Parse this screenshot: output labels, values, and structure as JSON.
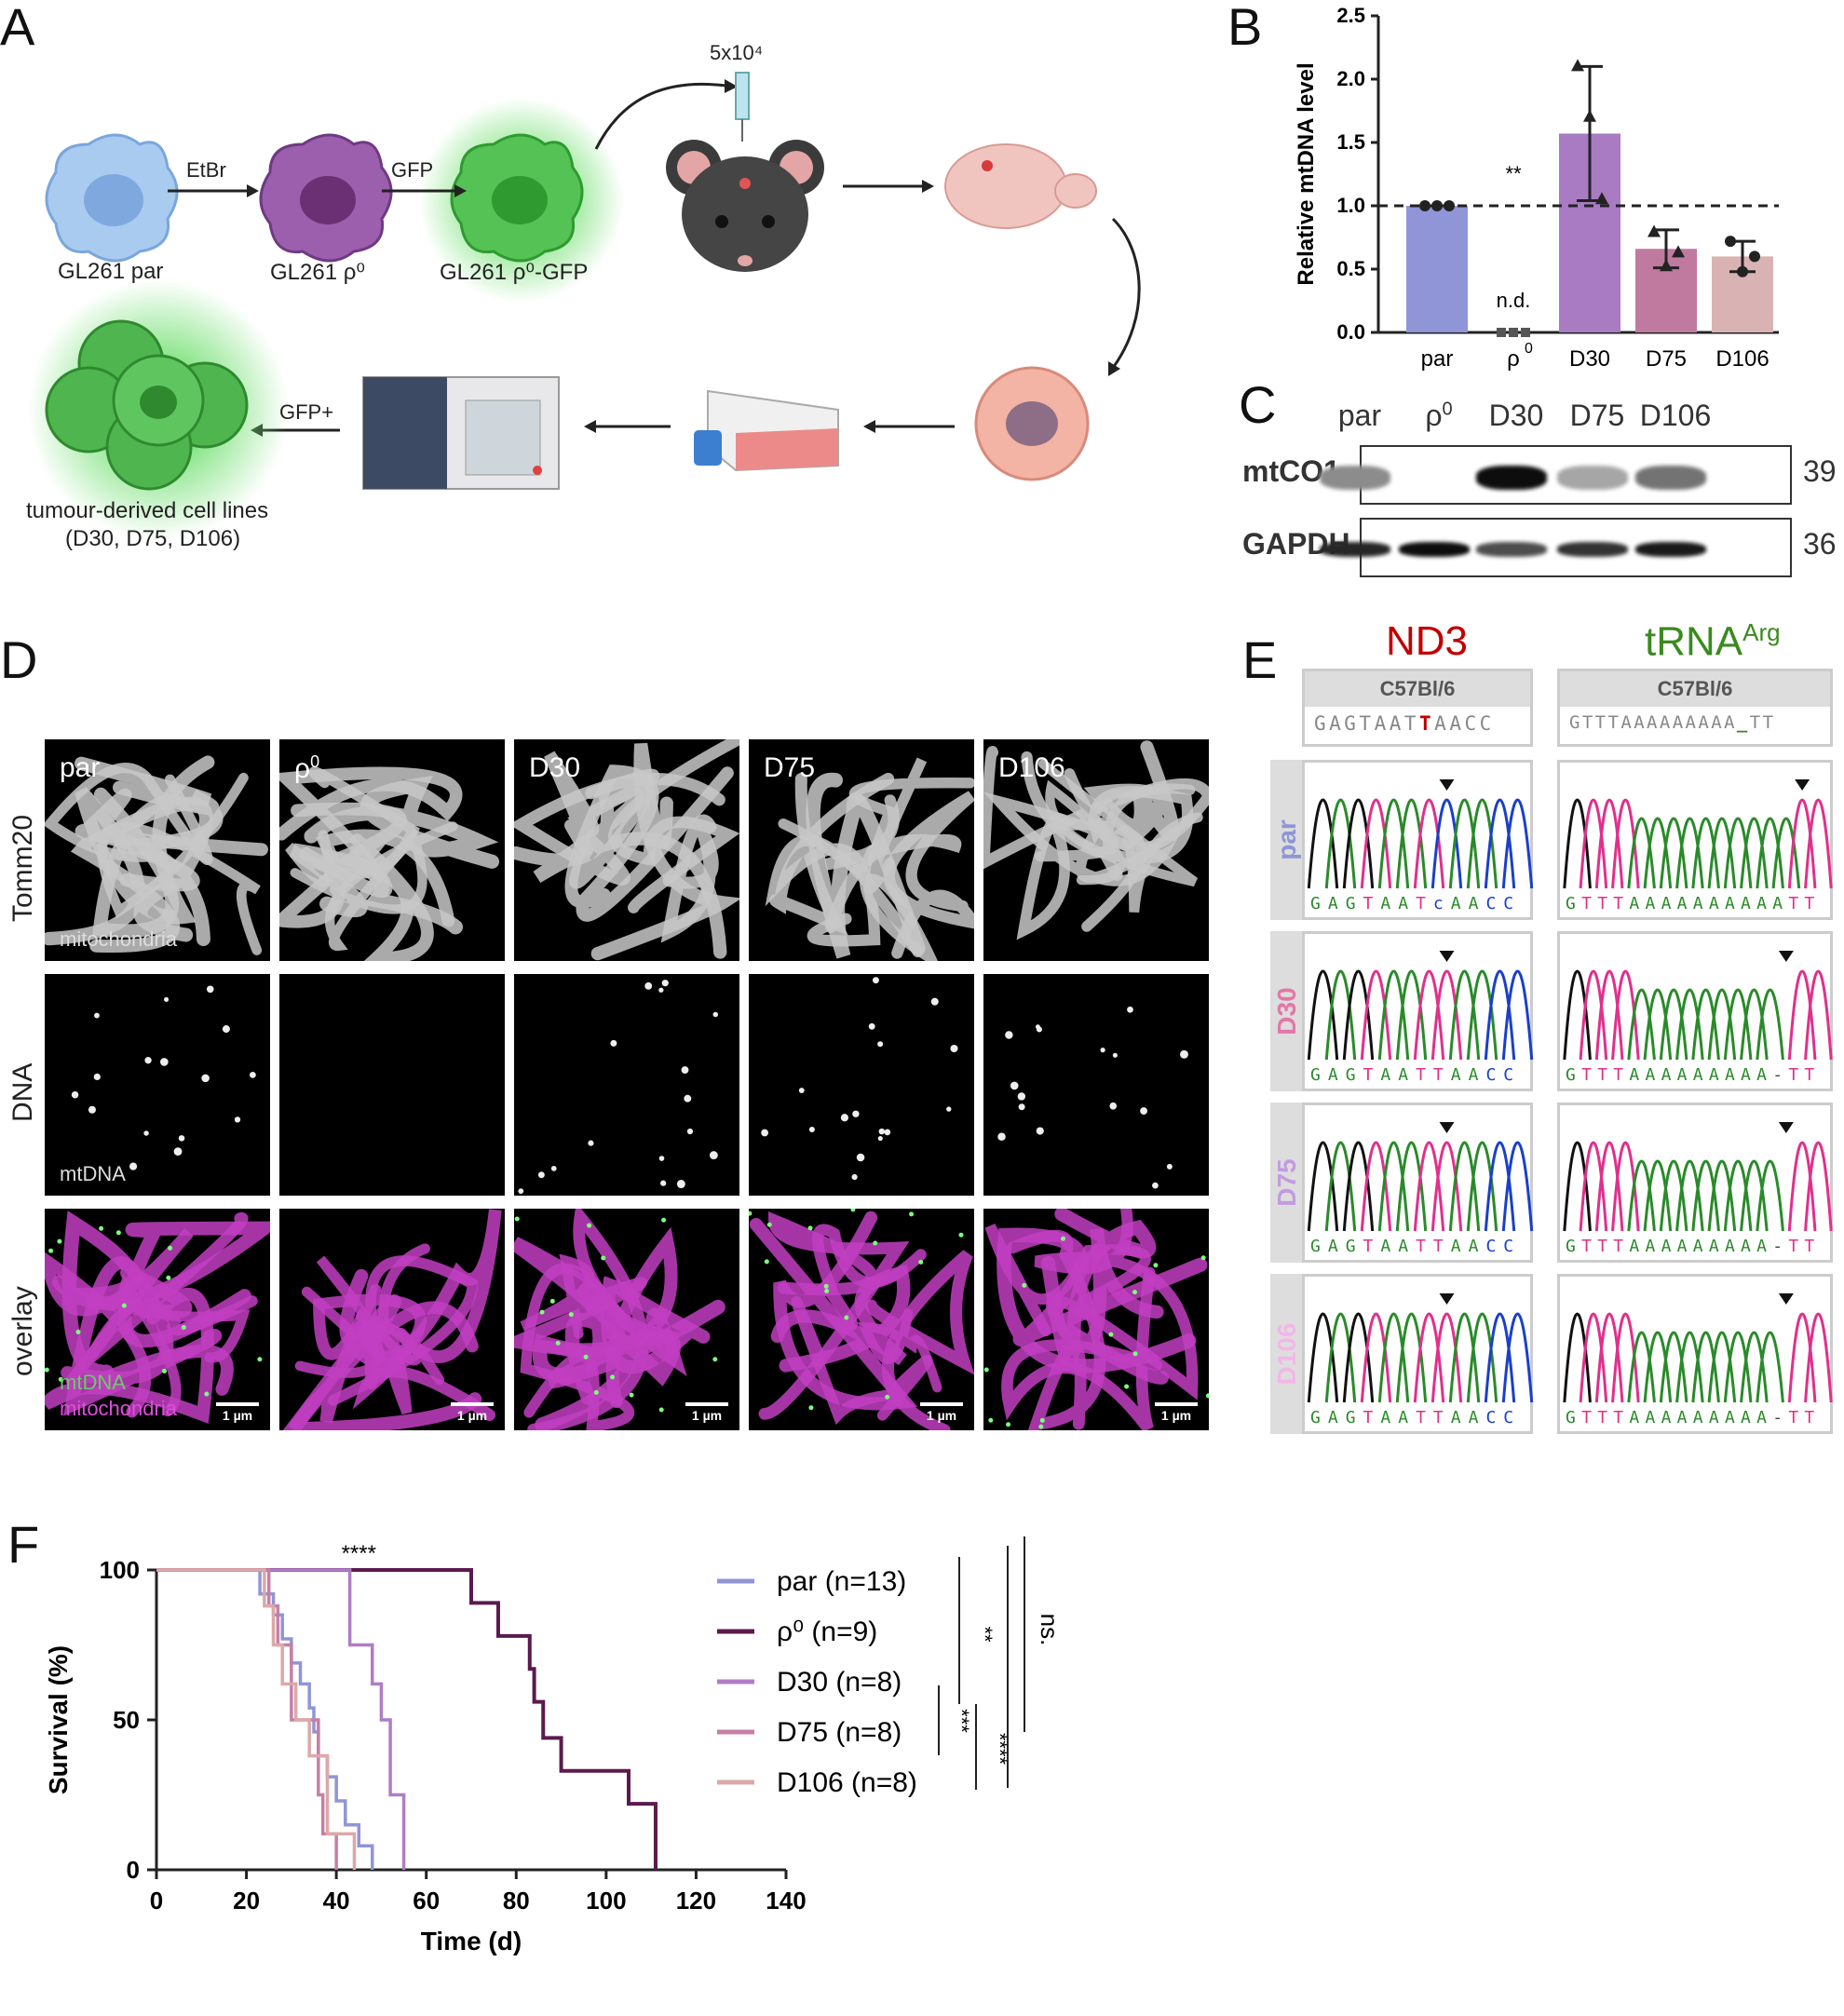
{
  "panels": {
    "A": "A",
    "B": "B",
    "C": "C",
    "D": "D",
    "E": "E",
    "F": "F"
  },
  "panelA": {
    "cells": [
      "GL261 par",
      "GL261 ρ⁰",
      "GL261 ρ⁰-GFP"
    ],
    "arrows": [
      "EtBr",
      "GFP",
      "GFP+"
    ],
    "injection": "5x10⁴",
    "derived": [
      "tumour-derived cell lines",
      "(D30, D75, D106)"
    ],
    "colors": {
      "par": "#9dc3ea",
      "rho0": "#8e4f9e",
      "gfp": "#3fbe3f"
    }
  },
  "panelB": {
    "chart_data": {
      "type": "bar",
      "categories": [
        "par",
        "ρ0",
        "D30",
        "D75",
        "D106"
      ],
      "values": [
        1.0,
        0.0,
        1.57,
        0.66,
        0.6
      ],
      "errors": [
        0.0,
        0.0,
        0.53,
        0.15,
        0.12
      ],
      "points": [
        [
          1,
          1,
          1
        ],
        [
          0,
          0,
          0
        ],
        [
          2.1,
          1.7,
          1.05
        ],
        [
          0.79,
          0.52,
          0.63
        ],
        [
          0.72,
          0.48,
          0.6
        ]
      ],
      "colors": [
        "#8f95d6",
        "#5b2b52",
        "#a87bc2",
        "#c07a9f",
        "#d9b3b3"
      ],
      "ylabel": "Relative mtDNA level",
      "ylim": [
        0,
        2.5
      ],
      "yticks": [
        "0.0",
        "0.5",
        "1.0",
        "1.5",
        "2.0",
        "2.5"
      ],
      "reference_line": 1.0,
      "annotations": {
        "sig": "**",
        "nd": "n.d."
      }
    }
  },
  "panelC": {
    "lanes": [
      "par",
      "ρ0",
      "D30",
      "D75",
      "D106"
    ],
    "rows": [
      {
        "name": "mtCO1",
        "kda": "39",
        "intensity": [
          0.45,
          0,
          0.95,
          0.35,
          0.55
        ]
      },
      {
        "name": "GAPDH",
        "kda": "36",
        "intensity": [
          0.85,
          0.95,
          0.7,
          0.8,
          0.9
        ]
      }
    ]
  },
  "panelD": {
    "columns": [
      "par",
      "ρ0",
      "D30",
      "D75",
      "D106"
    ],
    "rows": [
      "Tomm20",
      "DNA",
      "overlay"
    ],
    "subs": {
      "mito": "mitochondria",
      "mtdna": "mtDNA",
      "ov_green": "mtDNA",
      "ov_mag": "mitochondria"
    },
    "scale": "1 µm"
  },
  "panelE": {
    "genes": [
      {
        "name": "ND3",
        "color": "#c00000"
      },
      {
        "name": "tRNA",
        "sup": "Arg",
        "color": "#3a8a1e"
      }
    ],
    "ref_strain": "C57Bl/6",
    "ref_seq": [
      "GAGTAAT",
      "T",
      "AACC"
    ],
    "ref_seq2": [
      "GTTTAAAAAAAAA",
      "_",
      "TT"
    ],
    "samples": [
      {
        "name": "par",
        "color": "#8f95d6",
        "seq1": "GAGTAATcAACC",
        "seq2": "GTTTAAAAAAAAAATT"
      },
      {
        "name": "D30",
        "color": "#e377a8",
        "seq1": "GAGTAATTAACC",
        "seq2": "GTTTAAAAAAAAA-TT"
      },
      {
        "name": "D75",
        "color": "#c39be0",
        "seq1": "GAGTAATTAACC",
        "seq2": "GTTTAAAAAAAAA-TT"
      },
      {
        "name": "D106",
        "color": "#f4b6e8",
        "seq1": "GAGTAATTAACC",
        "seq2": "GTTTAAAAAAAAA-TT"
      }
    ]
  },
  "panelF": {
    "chart_data": {
      "type": "line",
      "xlabel": "Time (d)",
      "ylabel": "Survival (%)",
      "xlim": [
        0,
        140
      ],
      "ylim": [
        0,
        100
      ],
      "xticks": [
        "0",
        "20",
        "40",
        "60",
        "80",
        "100",
        "120",
        "140"
      ],
      "yticks": [
        "0",
        "50",
        "100"
      ],
      "series": [
        {
          "name": "par (n=13)",
          "color": "#8f95d6",
          "x": [
            0,
            22,
            23,
            26,
            28,
            30,
            32,
            34,
            35,
            36,
            38,
            40,
            42,
            45,
            48
          ],
          "y": [
            100,
            100,
            92,
            85,
            77,
            69,
            62,
            54,
            46,
            38,
            31,
            23,
            15,
            8,
            0
          ]
        },
        {
          "name": "ρ⁰ (n=9)",
          "color": "#5b1a4f",
          "x": [
            0,
            56,
            70,
            76,
            83,
            84,
            86,
            90,
            100,
            105,
            111
          ],
          "y": [
            100,
            100,
            89,
            78,
            67,
            56,
            44,
            33,
            33,
            22,
            0
          ]
        },
        {
          "name": "D30 (n=8)",
          "color": "#b07cc6",
          "x": [
            0,
            41,
            43,
            48,
            50,
            52,
            55
          ],
          "y": [
            100,
            100,
            75,
            62,
            50,
            25,
            0
          ]
        },
        {
          "name": "D75 (n=8)",
          "color": "#c67fa6",
          "x": [
            0,
            22,
            25,
            27,
            30,
            33,
            36,
            37,
            40
          ],
          "y": [
            100,
            100,
            88,
            75,
            50,
            50,
            25,
            12,
            0
          ]
        },
        {
          "name": "D106 (n=8)",
          "color": "#dca8a8",
          "x": [
            0,
            22,
            24,
            26,
            28,
            31,
            34,
            38,
            43,
            44
          ],
          "y": [
            100,
            100,
            88,
            75,
            62,
            50,
            38,
            12,
            12,
            0
          ]
        }
      ],
      "sig": {
        "top": "****",
        "rho_par": "**",
        "d30_rho": "***",
        "d75_rho": "****",
        "ns": "ns."
      }
    }
  }
}
